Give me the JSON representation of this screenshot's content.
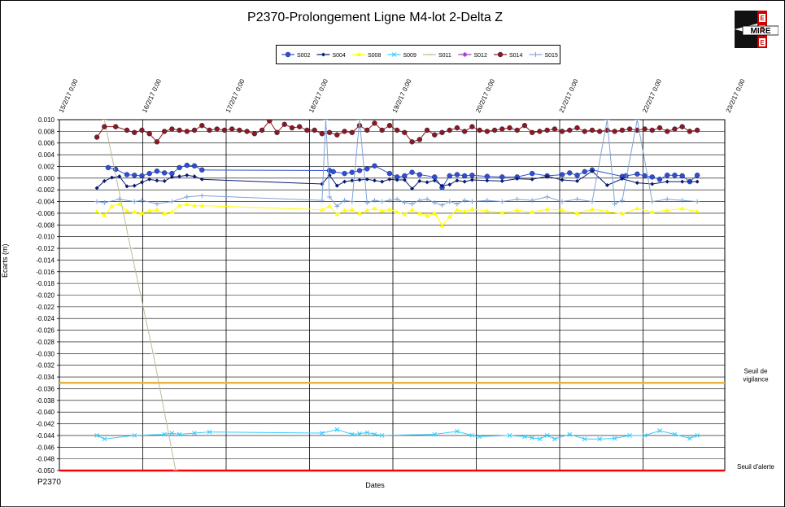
{
  "page_id": "P2370",
  "chart_data": {
    "type": "line",
    "title": "P2370-Prolongement Ligne M4-lot 2-Delta Z",
    "xlabel": "Dates",
    "ylabel": "Ecarts (m)",
    "ylim": [
      -0.05,
      0.01
    ],
    "y_step": 0.002,
    "x_ticks": [
      "15/2/17 0:00",
      "16/2/17 0:00",
      "17/2/17 0:00",
      "18/2/17 0:00",
      "19/2/17 0:00",
      "20/2/17 0:00",
      "21/2/17 0:00",
      "22/2/17 0:00",
      "23/2/17 0:00"
    ],
    "xlim_days": [
      0,
      8
    ],
    "grid": true,
    "legend_position": "top",
    "thresholds": [
      {
        "label_line1": "Seuil de",
        "label_line2": "vigilance",
        "value": -0.035,
        "color": "#e6b43c"
      },
      {
        "label_line1": "Seuil d'alerte",
        "label_line2": "",
        "value": -0.05,
        "color": "#ff0000"
      }
    ],
    "series": [
      {
        "name": "S002",
        "color": "#2e4fd0",
        "marker": "circle",
        "x": [
          0.15,
          0.25,
          0.4,
          0.5,
          0.6,
          0.7,
          0.8,
          0.9,
          1.0,
          1.1,
          1.2,
          1.3,
          1.4,
          3.1,
          3.15,
          3.3,
          3.4,
          3.5,
          3.6,
          3.7,
          3.9,
          4.0,
          4.1,
          4.2,
          4.3,
          4.5,
          4.6,
          4.7,
          4.8,
          4.9,
          5.0,
          5.2,
          5.4,
          5.6,
          5.8,
          6.0,
          6.2,
          6.3,
          6.4,
          6.5,
          6.6,
          7.0,
          7.05,
          7.2,
          7.3,
          7.4,
          7.5,
          7.6,
          7.7,
          7.8,
          7.9,
          8.0
        ],
        "y": [
          0.0018,
          0.0015,
          0.0006,
          0.0005,
          0.0004,
          0.0008,
          0.0012,
          0.0009,
          0.0008,
          0.0018,
          0.0022,
          0.0021,
          0.0014,
          0.0013,
          0.0011,
          0.0008,
          0.001,
          0.0013,
          0.0016,
          0.0021,
          0.0008,
          0.0002,
          0.0004,
          0.001,
          0.0006,
          0.0002,
          -0.0016,
          0.0004,
          0.0006,
          0.0004,
          0.0005,
          0.0003,
          0.0002,
          0.0002,
          0.0008,
          0.0004,
          0.0006,
          0.0009,
          0.0005,
          0.0011,
          0.0014,
          0.0003,
          0.0004,
          0.0007,
          0.0004,
          0.0002,
          -0.0002,
          0.0005,
          0.0005,
          0.0004,
          -0.0006,
          0.0005
        ]
      },
      {
        "name": "S004",
        "color": "#0a1a6e",
        "marker": "diamond",
        "x": [
          0.0,
          0.1,
          0.2,
          0.3,
          0.4,
          0.5,
          0.6,
          0.7,
          0.8,
          0.9,
          1.0,
          1.1,
          1.2,
          1.3,
          1.4,
          3.0,
          3.1,
          3.2,
          3.3,
          3.4,
          3.5,
          3.6,
          3.7,
          3.8,
          3.9,
          4.0,
          4.1,
          4.2,
          4.3,
          4.4,
          4.5,
          4.6,
          4.7,
          4.8,
          4.9,
          5.0,
          5.2,
          5.4,
          5.6,
          5.8,
          6.0,
          6.2,
          6.4,
          6.6,
          6.8,
          7.0,
          7.2,
          7.4,
          7.6,
          7.8,
          8.0
        ],
        "y": [
          -0.0017,
          -0.0005,
          0.0001,
          0.0003,
          -0.0014,
          -0.0013,
          -0.0007,
          -0.0002,
          -0.0004,
          -0.0005,
          0.0002,
          0.0003,
          0.0005,
          0.0003,
          -0.0002,
          -0.001,
          0.0005,
          -0.0013,
          -0.0006,
          -0.0004,
          -0.0003,
          -0.0002,
          -0.0004,
          -0.0006,
          -0.0002,
          -0.0003,
          -0.0003,
          -0.0018,
          -0.0005,
          -0.0007,
          -0.0004,
          -0.0013,
          -0.0011,
          -0.0004,
          -0.0006,
          -0.0003,
          -0.0004,
          -0.0005,
          -0.0001,
          -0.0002,
          0.0003,
          -0.0003,
          -0.0005,
          0.0012,
          -0.0012,
          -0.0001,
          -0.0008,
          -0.001,
          -0.0006,
          -0.0006,
          -0.0006
        ]
      },
      {
        "name": "S008",
        "color": "#ffff00",
        "marker": "triangle",
        "x": [
          0.0,
          0.1,
          0.2,
          0.3,
          0.4,
          0.5,
          0.6,
          0.7,
          0.8,
          0.9,
          1.0,
          1.1,
          1.2,
          1.3,
          1.4,
          3.0,
          3.1,
          3.2,
          3.3,
          3.4,
          3.5,
          3.6,
          3.7,
          3.8,
          3.9,
          4.0,
          4.1,
          4.2,
          4.3,
          4.4,
          4.5,
          4.6,
          4.7,
          4.8,
          4.9,
          5.0,
          5.2,
          5.4,
          5.6,
          5.8,
          6.0,
          6.2,
          6.4,
          6.6,
          6.8,
          7.0,
          7.2,
          7.4,
          7.6,
          7.8,
          8.0
        ],
        "y": [
          -0.0057,
          -0.0064,
          -0.0048,
          -0.0044,
          -0.0056,
          -0.0058,
          -0.006,
          -0.0056,
          -0.0054,
          -0.006,
          -0.0058,
          -0.0047,
          -0.0045,
          -0.0047,
          -0.0047,
          -0.0054,
          -0.0048,
          -0.0062,
          -0.0055,
          -0.0054,
          -0.006,
          -0.0055,
          -0.0052,
          -0.0056,
          -0.0053,
          -0.0058,
          -0.0062,
          -0.0054,
          -0.006,
          -0.0064,
          -0.006,
          -0.0081,
          -0.0066,
          -0.0054,
          -0.0057,
          -0.0053,
          -0.0056,
          -0.0059,
          -0.0055,
          -0.0058,
          -0.0053,
          -0.0055,
          -0.006,
          -0.0053,
          -0.0057,
          -0.0061,
          -0.0052,
          -0.0058,
          -0.0055,
          -0.0052,
          -0.0057
        ]
      },
      {
        "name": "S009",
        "color": "#33ccff",
        "marker": "x",
        "x": [
          0.0,
          0.1,
          0.5,
          0.9,
          1.0,
          1.1,
          1.3,
          1.5,
          3.0,
          3.2,
          3.4,
          3.5,
          3.6,
          3.7,
          3.8,
          4.5,
          4.8,
          5.0,
          5.1,
          5.5,
          5.7,
          5.8,
          5.9,
          6.0,
          6.1,
          6.3,
          6.5,
          6.7,
          6.9,
          7.1,
          7.3,
          7.5,
          7.7,
          7.9,
          8.0
        ],
        "y": [
          -0.044,
          -0.0446,
          -0.044,
          -0.0438,
          -0.0436,
          -0.0438,
          -0.0436,
          -0.0434,
          -0.0436,
          -0.043,
          -0.0438,
          -0.0437,
          -0.0435,
          -0.0438,
          -0.044,
          -0.0438,
          -0.0433,
          -0.044,
          -0.0442,
          -0.044,
          -0.0442,
          -0.0444,
          -0.0446,
          -0.044,
          -0.0446,
          -0.0438,
          -0.0446,
          -0.0446,
          -0.0445,
          -0.044,
          -0.044,
          -0.0432,
          -0.0438,
          -0.0445,
          -0.044
        ]
      },
      {
        "name": "S011",
        "color": "#b8bf98",
        "marker": "dash",
        "x": [
          0.1,
          0.45,
          0.75,
          1.05
        ],
        "y": [
          0.01,
          -0.012,
          -0.03,
          -0.05
        ]
      },
      {
        "name": "S012",
        "color": "#9933cc",
        "marker": "star",
        "x": [],
        "y": []
      },
      {
        "name": "S014",
        "color": "#8b1a1a",
        "marker": "circle",
        "x": [
          0.0,
          0.1,
          0.25,
          0.4,
          0.5,
          0.6,
          0.7,
          0.8,
          0.9,
          1.0,
          1.1,
          1.2,
          1.3,
          1.4,
          1.5,
          1.6,
          1.7,
          1.8,
          1.9,
          2.0,
          2.1,
          2.2,
          2.3,
          2.4,
          2.5,
          2.6,
          2.7,
          2.8,
          2.9,
          3.0,
          3.1,
          3.2,
          3.3,
          3.4,
          3.5,
          3.6,
          3.7,
          3.8,
          3.9,
          4.0,
          4.1,
          4.2,
          4.3,
          4.4,
          4.5,
          4.6,
          4.7,
          4.8,
          4.9,
          5.0,
          5.1,
          5.2,
          5.3,
          5.4,
          5.5,
          5.6,
          5.7,
          5.8,
          5.9,
          6.0,
          6.1,
          6.2,
          6.3,
          6.4,
          6.5,
          6.6,
          6.7,
          6.8,
          6.9,
          7.0,
          7.1,
          7.2,
          7.3,
          7.4,
          7.5,
          7.6,
          7.7,
          7.8,
          7.9,
          8.0
        ],
        "y": [
          0.007,
          0.0088,
          0.0088,
          0.0082,
          0.0078,
          0.0082,
          0.0076,
          0.0062,
          0.008,
          0.0084,
          0.0082,
          0.008,
          0.0082,
          0.009,
          0.0082,
          0.0084,
          0.0082,
          0.0084,
          0.0082,
          0.008,
          0.0076,
          0.0082,
          0.0098,
          0.0078,
          0.0092,
          0.0086,
          0.0088,
          0.0082,
          0.0082,
          0.0076,
          0.0078,
          0.0074,
          0.008,
          0.0078,
          0.009,
          0.0082,
          0.0094,
          0.0082,
          0.009,
          0.0082,
          0.0078,
          0.0062,
          0.0066,
          0.0082,
          0.0074,
          0.0078,
          0.0082,
          0.0086,
          0.008,
          0.0088,
          0.0082,
          0.008,
          0.0082,
          0.0084,
          0.0086,
          0.0082,
          0.009,
          0.0078,
          0.008,
          0.0082,
          0.0084,
          0.008,
          0.0082,
          0.0086,
          0.008,
          0.0082,
          0.008,
          0.0082,
          0.008,
          0.0082,
          0.0084,
          0.0082,
          0.0084,
          0.0082,
          0.0086,
          0.008,
          0.0084,
          0.0088,
          0.008,
          0.0082
        ]
      },
      {
        "name": "S015",
        "color": "#7fa3d8",
        "marker": "plus",
        "x": [
          0.0,
          0.1,
          0.3,
          0.5,
          0.6,
          0.8,
          1.0,
          1.2,
          1.4,
          3.0,
          3.05,
          3.1,
          3.2,
          3.3,
          3.4,
          3.5,
          3.6,
          3.7,
          3.8,
          3.9,
          4.0,
          4.1,
          4.2,
          4.3,
          4.4,
          4.5,
          4.6,
          4.7,
          4.8,
          4.9,
          5.0,
          5.2,
          5.4,
          5.6,
          5.8,
          6.0,
          6.2,
          6.4,
          6.6,
          6.8,
          6.9,
          7.0,
          7.2,
          7.4,
          7.6,
          7.8,
          8.0
        ],
        "y": [
          -0.004,
          -0.0042,
          -0.0036,
          -0.004,
          -0.0038,
          -0.0044,
          -0.004,
          -0.0032,
          -0.003,
          -0.0038,
          0.01,
          -0.0032,
          -0.0048,
          -0.0038,
          -0.004,
          0.01,
          -0.0042,
          -0.0038,
          -0.004,
          -0.0038,
          -0.0036,
          -0.0042,
          -0.0044,
          -0.0038,
          -0.0036,
          -0.0042,
          -0.0046,
          -0.004,
          -0.0044,
          -0.0038,
          -0.004,
          -0.0038,
          -0.004,
          -0.0036,
          -0.0038,
          -0.0032,
          -0.004,
          -0.0036,
          -0.004,
          0.01,
          -0.0044,
          -0.0038,
          0.01,
          -0.004,
          -0.0036,
          -0.0038,
          -0.004
        ]
      }
    ]
  },
  "logo": {
    "text": "MIRE",
    "letters": [
      "E",
      "E",
      "E"
    ],
    "accent": "#cc0000"
  }
}
